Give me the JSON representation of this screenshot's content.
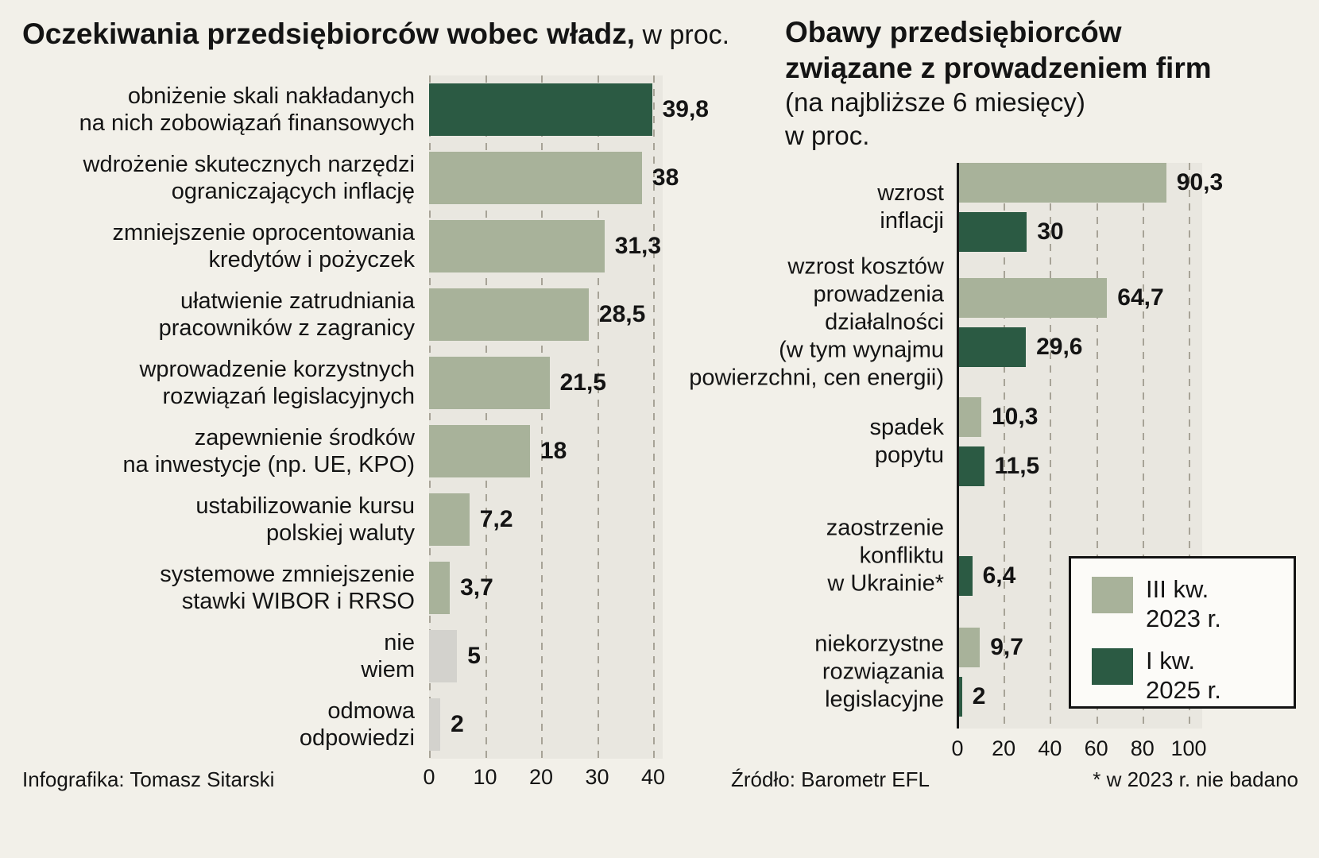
{
  "colors": {
    "dark_green": "#2b5a43",
    "sage": "#a8b29a",
    "gray": "#d3d2cd",
    "page_bg": "#f2f0e9",
    "plot_bg": "#e9e7e0",
    "grid": "#a7a397",
    "text": "#141414"
  },
  "footer": {
    "credit": "Infografika: Tomasz Sitarski",
    "source": "Źródło: Barometr EFL",
    "note": "* w 2023 r. nie badano"
  },
  "chart_data": [
    {
      "id": "expectations",
      "type": "bar",
      "orientation": "horizontal",
      "title_bold": "Oczekiwania przedsiębiorców wobec władz,",
      "title_light": " w proc.",
      "xlim": [
        0,
        40
      ],
      "x_ticks": [
        0,
        10,
        20,
        30,
        40
      ],
      "grid": "dashed-vertical",
      "categories": [
        [
          "obniżenie skali nakładanych",
          "na nich zobowiązań finansowych"
        ],
        [
          "wdrożenie skutecznych narzędzi",
          "ograniczających inflację"
        ],
        [
          "zmniejszenie oprocentowania",
          "kredytów i pożyczek"
        ],
        [
          "ułatwienie zatrudniania",
          "pracowników z zagranicy"
        ],
        [
          "wprowadzenie korzystnych",
          "rozwiązań legislacyjnych"
        ],
        [
          "zapewnienie środków",
          "na inwestycje (np. UE, KPO)"
        ],
        [
          "ustabilizowanie kursu",
          "polskiej waluty"
        ],
        [
          "systemowe zmniejszenie",
          "stawki WIBOR i RRSO"
        ],
        [
          "nie",
          "wiem"
        ],
        [
          "odmowa",
          "odpowiedzi"
        ]
      ],
      "values": [
        39.8,
        38,
        31.3,
        28.5,
        21.5,
        18,
        7.2,
        3.7,
        5,
        2
      ],
      "value_labels": [
        "39,8",
        "38",
        "31,3",
        "28,5",
        "21,5",
        "18",
        "7,2",
        "3,7",
        "5",
        "2"
      ],
      "bar_colors": [
        "dark_green",
        "sage",
        "sage",
        "sage",
        "sage",
        "sage",
        "sage",
        "sage",
        "gray",
        "gray"
      ]
    },
    {
      "id": "concerns",
      "type": "bar",
      "orientation": "horizontal",
      "title_bold_lines": [
        "Obawy przedsiębiorców",
        "związane z prowadzeniem firm"
      ],
      "title_light_lines": [
        "(na najbliższe 6 miesięcy)",
        "w proc."
      ],
      "xlim": [
        0,
        100
      ],
      "x_ticks": [
        0,
        20,
        40,
        60,
        80,
        100
      ],
      "grid": "dashed-vertical",
      "series_names": [
        "III kw. 2023 r.",
        "I kw. 2025 r."
      ],
      "legend": {
        "position": "overlay-bottom-right",
        "entries": [
          {
            "color": "sage",
            "lines": [
              "III kw.",
              "2023 r."
            ]
          },
          {
            "color": "dark_green",
            "lines": [
              "I kw.",
              "2025 r."
            ]
          }
        ]
      },
      "groups": [
        {
          "category": [
            "wzrost",
            "inflacji"
          ],
          "bars": [
            {
              "series": 0,
              "value": 90.3,
              "label": "90,3"
            },
            {
              "series": 1,
              "value": 30,
              "label": "30"
            }
          ]
        },
        {
          "category": [
            "wzrost kosztów",
            "prowadzenia",
            "działalności",
            "(w tym wynajmu",
            "powierzchni, cen energii)"
          ],
          "bars": [
            {
              "series": 0,
              "value": 64.7,
              "label": "64,7"
            },
            {
              "series": 1,
              "value": 29.6,
              "label": "29,6"
            }
          ]
        },
        {
          "category": [
            "spadek",
            "popytu"
          ],
          "bars": [
            {
              "series": 0,
              "value": 10.3,
              "label": "10,3"
            },
            {
              "series": 1,
              "value": 11.5,
              "label": "11,5"
            }
          ]
        },
        {
          "category": [
            "zaostrzenie",
            "konfliktu",
            "w Ukrainie*"
          ],
          "bars": [
            {
              "series": 1,
              "value": 6.4,
              "label": "6,4"
            }
          ]
        },
        {
          "category": [
            "niekorzystne",
            "rozwiązania",
            "legislacyjne"
          ],
          "bars": [
            {
              "series": 0,
              "value": 9.7,
              "label": "9,7"
            },
            {
              "series": 1,
              "value": 2,
              "label": "2"
            }
          ]
        }
      ],
      "footnote": "* w 2023 r. nie badano"
    }
  ]
}
